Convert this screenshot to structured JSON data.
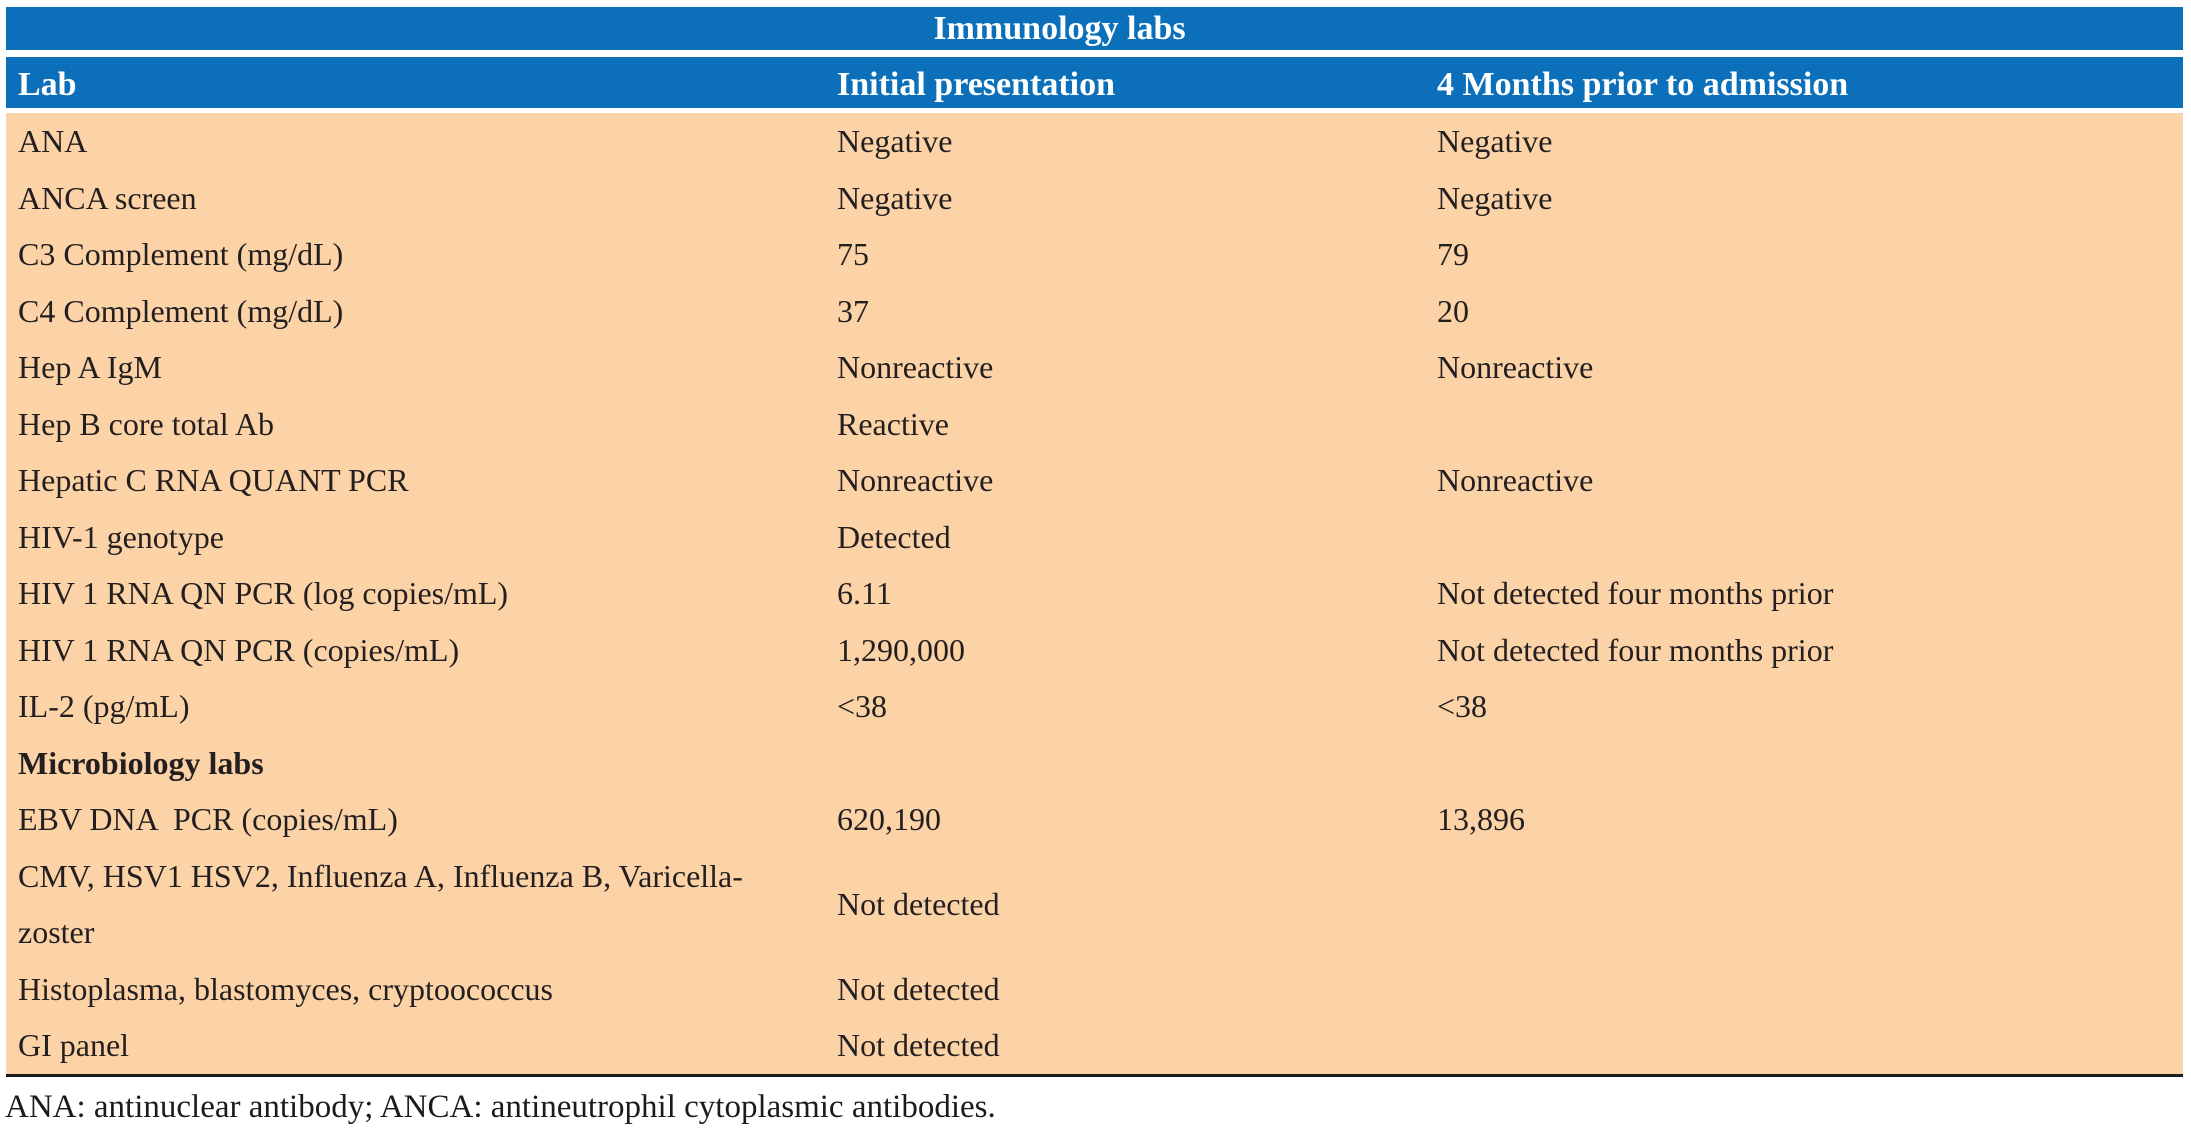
{
  "colors": {
    "header_blue": "#0b70b9",
    "body_peach": "#fcd3a6",
    "header_text": "#ffffff",
    "body_text": "#231f20"
  },
  "table": {
    "title": "Immunology labs",
    "columns": [
      "Lab",
      "Initial presentation",
      "4 Months prior to admission"
    ],
    "rows": [
      {
        "lab": "ANA",
        "initial": "Negative",
        "prior": "Negative"
      },
      {
        "lab": "ANCA screen",
        "initial": "Negative",
        "prior": "Negative"
      },
      {
        "lab": "C3 Complement (mg/dL)",
        "initial": "75",
        "prior": "79"
      },
      {
        "lab": "C4 Complement (mg/dL)",
        "initial": "37",
        "prior": "20"
      },
      {
        "lab": "Hep A IgM",
        "initial": "Nonreactive",
        "prior": "Nonreactive"
      },
      {
        "lab": "Hep B core total Ab",
        "initial": "Reactive",
        "prior": ""
      },
      {
        "lab": "Hepatic C RNA QUANT PCR",
        "initial": "Nonreactive",
        "prior": "Nonreactive"
      },
      {
        "lab": "HIV-1 genotype",
        "initial": "Detected",
        "prior": ""
      },
      {
        "lab": "HIV 1 RNA QN PCR (log copies/mL)",
        "initial": "6.11",
        "prior": "Not detected four months prior"
      },
      {
        "lab": "HIV 1 RNA QN PCR (copies/mL)",
        "initial": "1,290,000",
        "prior": "Not detected four months prior"
      },
      {
        "lab": "IL-2 (pg/mL)",
        "initial": "<38",
        "prior": "<38"
      },
      {
        "lab": "Microbiology labs",
        "initial": "",
        "prior": ""
      },
      {
        "lab": "EBV DNA  PCR (copies/mL)",
        "initial": "620,190",
        "prior": "13,896"
      },
      {
        "lab": "CMV, HSV1 HSV2, Influenza A, Influenza B, Varicella-zoster",
        "initial": "Not detected",
        "prior": ""
      },
      {
        "lab": "Histoplasma, blastomyces, cryptoococcus",
        "initial": "Not detected",
        "prior": ""
      },
      {
        "lab": "GI panel",
        "initial": "Not detected",
        "prior": ""
      }
    ],
    "footnote": "ANA: antinuclear antibody; ANCA: antineutrophil cytoplasmic antibodies."
  }
}
